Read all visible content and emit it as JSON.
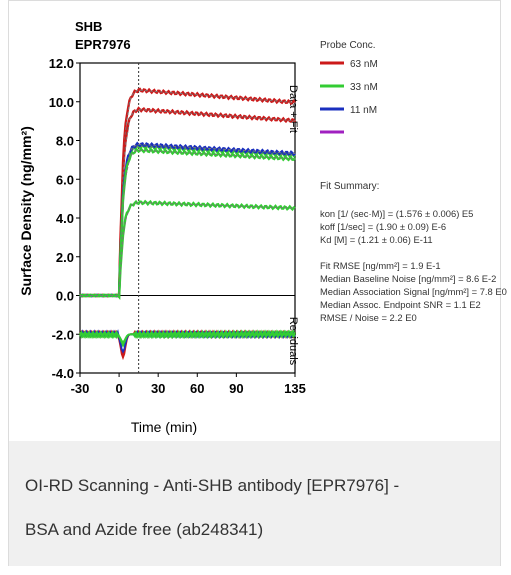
{
  "caption": {
    "line1": "OI-RD Scanning - Anti-SHB antibody [EPR7976] -",
    "line2": "BSA and Azide free (ab248341)"
  },
  "chart_data": {
    "type": "line",
    "title_line1": "SHB",
    "title_line2": "EPR7976",
    "xlabel": "Time (min)",
    "ylabel": "Surface Density (ng/mm²)",
    "right_label_top": "Data + Fit",
    "right_label_bottom": "Residuals",
    "xlim": [
      -30,
      135
    ],
    "ylim": [
      -4.0,
      12.0
    ],
    "x_ticks": [
      "-30",
      "0",
      "30",
      "60",
      "90",
      "135"
    ],
    "y_ticks": [
      "12.0",
      "10.0",
      "8.0",
      "6.0",
      "4.0",
      "2.0",
      "0.0",
      "-2.0",
      "-4.0"
    ],
    "injection_end_x": 15,
    "colors": {
      "red": "#cc1a1a",
      "green": "#33cc33",
      "blue": "#1a2fbf",
      "purple": "#a020c0",
      "fit": "#777777"
    },
    "series": [
      {
        "color": "red",
        "plateau": 10.6,
        "residual_dip": -3.2
      },
      {
        "color": "red",
        "plateau": 9.6,
        "residual_dip": -3.0
      },
      {
        "color": "green",
        "plateau": 7.7,
        "residual_dip": -2.6
      },
      {
        "color": "blue",
        "plateau": 7.8,
        "residual_dip": -2.9
      },
      {
        "color": "green",
        "plateau": 7.5,
        "residual_dip": -2.5
      },
      {
        "color": "green",
        "plateau": 4.8,
        "residual_dip": -2.4
      }
    ],
    "residual_baseline": -2.0,
    "legend": {
      "title": "Probe Conc.",
      "items": [
        {
          "label": "63 nM",
          "color": "#cc1a1a"
        },
        {
          "label": "33 nM",
          "color": "#33cc33"
        },
        {
          "label": "11 nM",
          "color": "#1a2fbf"
        },
        {
          "label": "",
          "color": "#a020c0"
        }
      ]
    },
    "fit_summary": {
      "title": "Fit Summary:",
      "lines": [
        "kon  [1/ (sec·M)]  =  (1.576 ± 0.006) E5",
        "koff  [1/sec]  =  (1.90 ± 0.09) E-6",
        "Kd  [M]  =  (1.21 ± 0.06) E-11",
        "",
        "Fit RMSE [ng/mm²]  =  1.9 E-1",
        "Median Baseline Noise [ng/mm²]  =  8.6 E-2",
        "Median Association Signal [ng/mm²]  =  7.8 E0",
        "Median Assoc. Endpoint SNR  =  1.1 E2",
        "RMSE / Noise  =  2.2 E0"
      ]
    }
  }
}
